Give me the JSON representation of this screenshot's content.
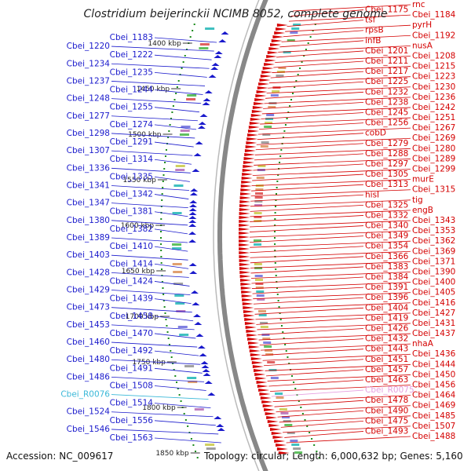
{
  "title": "Clostridium beijerinckii NCIMB 8052, complete genome",
  "accession": "Accession: NC_009617",
  "summary": "Topology: circular; Length: 6,000,632 bp; Genes: 5,160",
  "colors": {
    "plus_strand": "#d40000",
    "minus_strand": "#1a1acc",
    "rna": "#3ab8d8",
    "misc_rna": "#e6a0e0",
    "backbone": "#888888",
    "tick": "#1a8a1a"
  },
  "ticks": [
    "1400 kbp",
    "1450 kbp",
    "1500 kbp",
    "1550 kbp",
    "1600 kbp",
    "1650 kbp",
    "1700 kbp",
    "1750 kbp",
    "1800 kbp",
    "1850 kbp"
  ],
  "left_labels": [
    "Cbei_1183",
    "Cbei_1220",
    "Cbei_1222",
    "Cbei_1234",
    "Cbei_1235",
    "Cbei_1237",
    "Cbei_1244",
    "Cbei_1248",
    "Cbei_1255",
    "Cbei_1277",
    "Cbei_1274",
    "Cbei_1298",
    "Cbei_1291",
    "Cbei_1307",
    "Cbei_1314",
    "Cbei_1336",
    "Cbei_1335",
    "Cbei_1341",
    "Cbei_1342",
    "Cbei_1347",
    "Cbei_1381",
    "Cbei_1380",
    "Cbei_1382",
    "Cbei_1389",
    "Cbei_1410",
    "Cbei_1403",
    "Cbei_1414",
    "Cbei_1428",
    "Cbei_1424",
    "Cbei_1429",
    "Cbei_1439",
    "Cbei_1473",
    "Cbei_1458",
    "Cbei_1453",
    "Cbei_1470",
    "Cbei_1460",
    "Cbei_1492",
    "Cbei_1480",
    "Cbei_1491",
    "Cbei_1486",
    "Cbei_1508",
    "Cbei_R0076",
    "Cbei_1514",
    "Cbei_1524",
    "Cbei_1556",
    "Cbei_1546",
    "Cbei_1563"
  ],
  "right_labels": [
    "rnc",
    "Cbei_1175",
    "Cbei_1184",
    "tsf",
    "pyrH",
    "rpsB",
    "Cbei_1192",
    "infB",
    "nusA",
    "Cbei_1201",
    "Cbei_1208",
    "Cbei_1211",
    "Cbei_1215",
    "Cbei_1217",
    "Cbei_1223",
    "Cbei_1225",
    "Cbei_1230",
    "Cbei_1232",
    "Cbei_1236",
    "Cbei_1238",
    "Cbei_1242",
    "Cbei_1245",
    "Cbei_1251",
    "Cbei_1256",
    "Cbei_1267",
    "cobD",
    "Cbei_1269",
    "Cbei_1279",
    "Cbei_1280",
    "Cbei_1288",
    "Cbei_1289",
    "Cbei_1297",
    "Cbei_1299",
    "Cbei_1305",
    "murE",
    "Cbei_1313",
    "Cbei_1315",
    "hisI",
    "tig",
    "Cbei_1325",
    "engB",
    "Cbei_1332",
    "Cbei_1343",
    "Cbei_1340",
    "Cbei_1353",
    "Cbei_1349",
    "Cbei_1362",
    "Cbei_1354",
    "Cbei_1369",
    "Cbei_1366",
    "Cbei_1371",
    "Cbei_1383",
    "Cbei_1390",
    "Cbei_1384",
    "Cbei_1400",
    "Cbei_1391",
    "Cbei_1405",
    "Cbei_1396",
    "Cbei_1416",
    "Cbei_1404",
    "Cbei_1427",
    "Cbei_1419",
    "Cbei_1431",
    "Cbei_1426",
    "Cbei_1437",
    "Cbei_1432",
    "nhaA",
    "Cbei_1443",
    "Cbei_1436",
    "Cbei_1451",
    "Cbei_1444",
    "Cbei_1457",
    "Cbei_1450",
    "Cbei_1463",
    "Cbei_1456",
    "Cbei_R0075",
    "Cbei_1464",
    "Cbei_1478",
    "Cbei_1469",
    "Cbei_1490",
    "Cbei_1485",
    "Cbei_1475",
    "Cbei_1507",
    "Cbei_1493",
    "Cbei_1488"
  ]
}
